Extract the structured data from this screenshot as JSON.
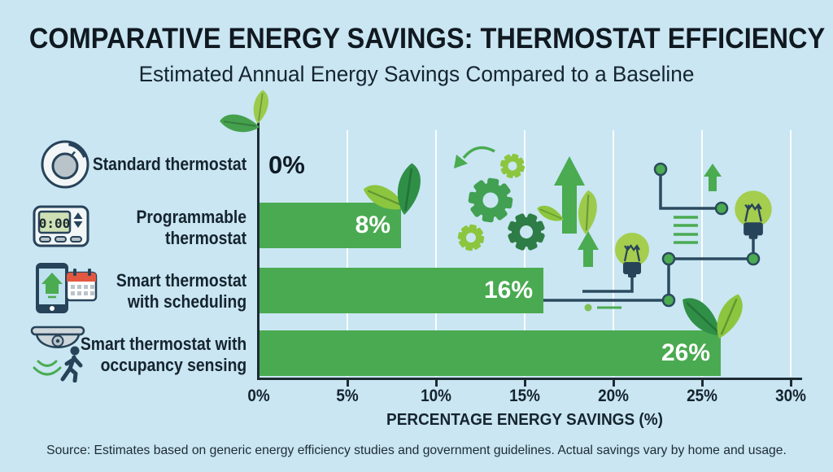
{
  "header": {
    "title": "COMPARATIVE ENERGY SAVINGS: THERMOSTAT EFFICIENCY",
    "subtitle": "Estimated Annual Energy Savings Compared to a Baseline"
  },
  "footer": {
    "source": "Source: Estimates based on generic energy efficiency studies and government guidelines. Actual savings vary by home and usage."
  },
  "colors": {
    "background": "#c9e6f2",
    "bar_green": "#4aaa51",
    "leaf_light": "#8cc63f",
    "leaf_pale": "#9ccb4c",
    "leaf_dark": "#2f8f47",
    "navy": "#27435a",
    "text_dark": "#15242e",
    "calendar_red": "#e2573f"
  },
  "chart_data": {
    "type": "bar",
    "orientation": "horizontal",
    "title": "COMPARATIVE ENERGY SAVINGS: THERMOSTAT EFFICIENCY",
    "subtitle": "Estimated Annual Energy Savings Compared to a Baseline",
    "categories": [
      "Standard thermostat",
      "Programmable thermostat",
      "Smart thermostat with scheduling",
      "Smart thermostat with occupancy sensing"
    ],
    "values": [
      0,
      8,
      16,
      26
    ],
    "value_labels": [
      "0%",
      "8%",
      "16%",
      "26%"
    ],
    "xlabel": "PERCENTAGE ENERGY SAVINGS (%)",
    "xlim": [
      0,
      30
    ],
    "xticks": [
      0,
      5,
      10,
      15,
      20,
      25,
      30
    ],
    "xtick_labels": [
      "0%",
      "5%",
      "10%",
      "15%",
      "20%",
      "25%",
      "30%"
    ],
    "grid": true,
    "legend": false,
    "bar_color": "#4aaa51",
    "source": "Source: Estimates based on generic energy efficiency studies and government guidelines. Actual savings vary by home and usage."
  },
  "rows": [
    {
      "icon": "dial-thermostat-icon",
      "label_lines": [
        "Standard thermostat",
        ""
      ],
      "value": 0,
      "value_label": "0%"
    },
    {
      "icon": "programmable-thermostat-icon",
      "label_lines": [
        "Programmable",
        "thermostat"
      ],
      "value": 8,
      "value_label": "8%"
    },
    {
      "icon": "smart-thermostat-scheduling-icon",
      "label_lines": [
        "Smart thermostat",
        "with scheduling"
      ],
      "value": 16,
      "value_label": "16%"
    },
    {
      "icon": "occupancy-sensing-icon",
      "label_lines": [
        "Smart thermostat with",
        "occupancy sensing"
      ],
      "value": 26,
      "value_label": "26%"
    }
  ],
  "icons": {
    "lcd_text": "0:00"
  }
}
